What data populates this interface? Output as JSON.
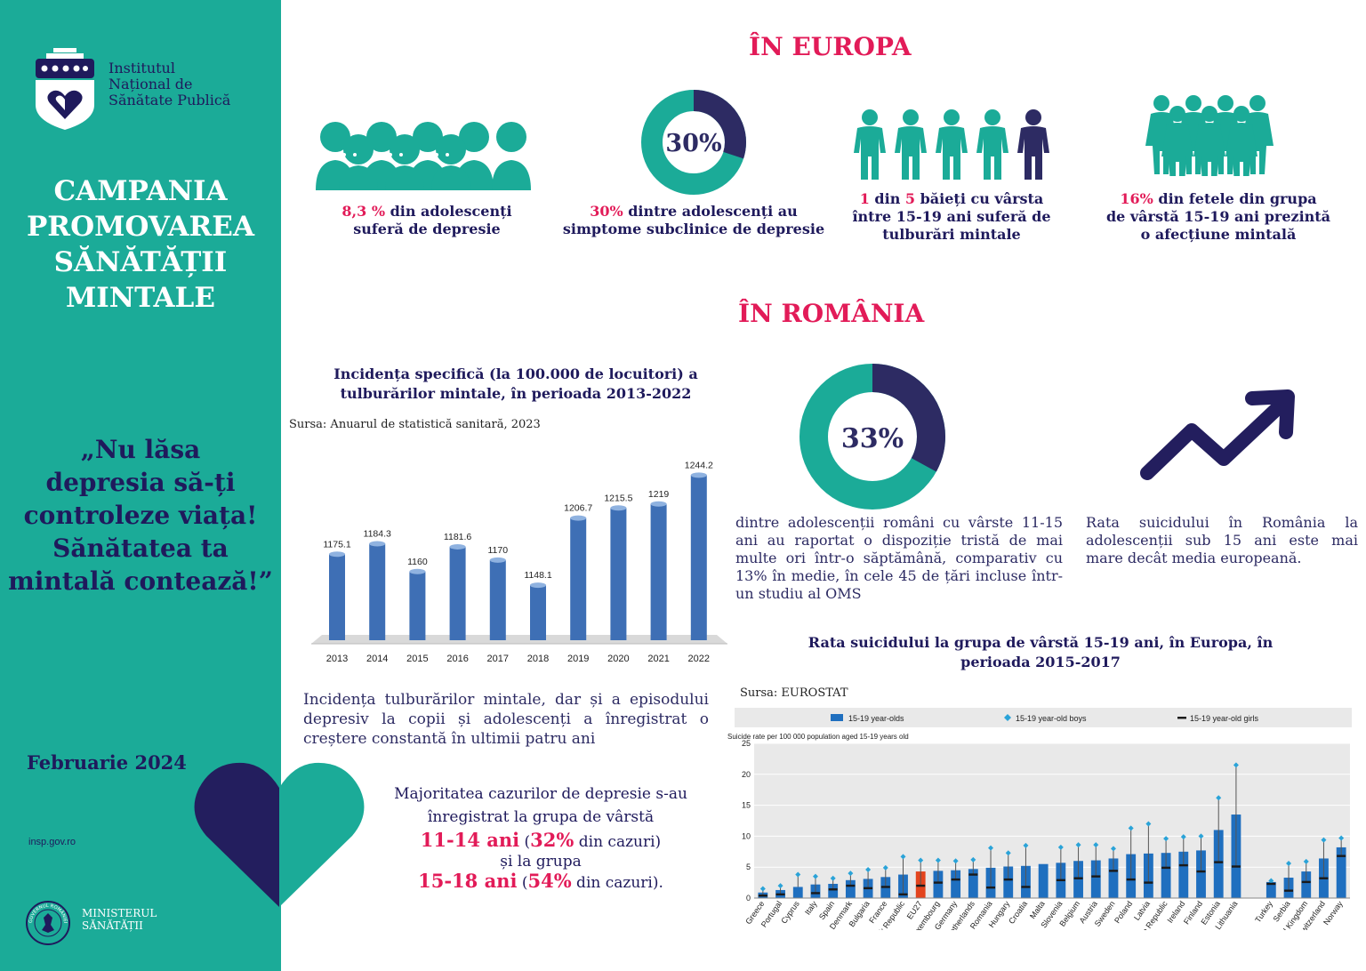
{
  "sidebar": {
    "logo_lines": [
      "Institutul",
      "Național de",
      "Sănătate Publică"
    ],
    "campaign_lines": [
      "CAMPANIA",
      "PROMOVAREA",
      "SĂNĂTĂȚII",
      "MINTALE"
    ],
    "quote_lines": [
      "„Nu lăsa",
      "depresia să-ți",
      "controleze viața!",
      "Sănătatea ta",
      "mintală contează!”"
    ],
    "date": "Februarie 2024",
    "website": "insp.gov.ro",
    "ministry_lines": [
      "MINISTERUL",
      "SĂNĂTĂȚII"
    ],
    "seal_text": "GUVERNUL ROMÂNIEI"
  },
  "europe": {
    "title": "ÎN EUROPA",
    "stat1": {
      "value": "8,3 %",
      "text_a": " din adolescenți",
      "text_b": "suferă de depresie"
    },
    "stat2": {
      "donut_label": "30%",
      "value": "30%",
      "text_a": " dintre adolescenți au",
      "text_b": "simptome subclinice de depresie"
    },
    "stat3": {
      "n1": "1",
      "t1": " din ",
      "n2": "5",
      "t2": " băieți cu vârsta",
      "text_b": "între 15-19 ani suferă de",
      "text_c": "tulburări mintale"
    },
    "stat4": {
      "value": "16%",
      "text_a": " din fetele din grupa",
      "text_b": "de vârstă 15-19 ani prezintă",
      "text_c": "o afecțiune mintală"
    }
  },
  "romania": {
    "title": "ÎN ROMÂNIA",
    "donut_label": "33%",
    "donut_text": "dintre adolescenții români cu vârste 11-15 ani au raportat o dispoziție tristă de mai multe ori într-o săptămână, comparativ cu 13% în medie, în cele 45 de țări incluse într-un studiu al OMS",
    "suicide_text": "Rata suicidului în România la adolescenții sub 15 ani este mai mare decât media europeană.",
    "incidence_text": "Incidența tulburărilor mintale, dar și a episodului depresiv la copii și adolescenți a înregistrat o creștere constantă în ultimii patru ani",
    "majority": {
      "line1": "Majoritatea cazurilor de depresie s-au",
      "line2": "înregistrat la grupa de vârstă",
      "g1_age": "11-14 ani",
      "g1_open": " (",
      "g1_pct": "32%",
      "g1_tail": " din cazuri)",
      "mid": "și la grupa",
      "g2_age": "15-18 ani",
      "g2_open": " (",
      "g2_pct": "54%",
      "g2_tail": " din cazuri)."
    }
  },
  "chart_data": [
    {
      "type": "bar",
      "title": "Incidența specifică (la 100.000 de locuitori) a tulburărilor mintale, în perioada 2013-2022",
      "source": "Sursa: Anuarul de statistică sanitară, 2023",
      "categories": [
        "2013",
        "2014",
        "2015",
        "2016",
        "2017",
        "2018",
        "2019",
        "2020",
        "2021",
        "2022"
      ],
      "values": [
        1175.1,
        1184.3,
        1160,
        1181.6,
        1170,
        1148.1,
        1206.7,
        1215.5,
        1219,
        1244.2
      ],
      "value_labels": [
        "1175.1",
        "1184.3",
        "1160",
        "1181.6",
        "1170",
        "1148.1",
        "1206.7",
        "1215.5",
        "1219",
        "1244.2"
      ],
      "color": "#3e6fb5"
    },
    {
      "type": "bar",
      "title": "Rata suicidului la grupa de vârstă 15-19 ani, în Europa, în perioada 2015-2017",
      "source": "Sursa:  EUROSTAT",
      "ylabel": "Suicide rate per 100 000 population aged 15-19 years old",
      "ylim": [
        0,
        25
      ],
      "yticks": [
        0,
        5,
        10,
        15,
        20,
        25
      ],
      "legend": [
        "15-19 year-olds",
        "15-19 year-old boys",
        "15-19 year-old girls"
      ],
      "categories": [
        "Greece",
        "Portugal",
        "Cyprus",
        "Italy",
        "Spain",
        "Denmark",
        "Bulgaria",
        "France",
        "Slovak Republic",
        "EU27",
        "Luxembourg",
        "Germany",
        "Netherlands",
        "Romania",
        "Hungary",
        "Croatia",
        "Malta",
        "Slovenia",
        "Belgium",
        "Austria",
        "Sweden",
        "Poland",
        "Latvia",
        "Czech Republic",
        "Ireland",
        "Finland",
        "Estonia",
        "Lithuania",
        "",
        "Turkey",
        "Serbia",
        "United Kingdom",
        "Switzerland",
        "Norway"
      ],
      "series": [
        {
          "name": "15-19 year-olds",
          "values": [
            0.9,
            1.3,
            1.8,
            2.2,
            2.3,
            2.9,
            3.1,
            3.4,
            3.8,
            4.3,
            4.4,
            4.5,
            4.7,
            4.9,
            5.1,
            5.2,
            5.5,
            5.7,
            6,
            6.1,
            6.4,
            7.1,
            7.2,
            7.3,
            7.5,
            7.7,
            11,
            13.5,
            null,
            2.6,
            3.3,
            4.3,
            6.4,
            8.2
          ]
        },
        {
          "name": "15-19 year-old boys",
          "values": [
            1.5,
            2.0,
            3.8,
            3.5,
            3.2,
            4.0,
            4.6,
            4.9,
            6.7,
            6.1,
            6.1,
            6.0,
            6.2,
            8.1,
            7.3,
            8.5,
            null,
            8.2,
            8.6,
            8.6,
            8.0,
            11.3,
            12.0,
            9.6,
            9.9,
            10.0,
            16.2,
            21.5,
            null,
            2.8,
            5.6,
            5.9,
            9.4,
            9.7
          ]
        },
        {
          "name": "15-19 year-old girls",
          "values": [
            0.4,
            0.6,
            null,
            0.8,
            1.4,
            2.0,
            1.6,
            1.8,
            0.6,
            2.0,
            2.5,
            3.0,
            3.8,
            1.7,
            3.0,
            1.8,
            null,
            2.9,
            3.2,
            3.5,
            4.4,
            3.0,
            2.5,
            4.9,
            5.3,
            4.3,
            5.8,
            5.1,
            null,
            2.3,
            1.2,
            2.6,
            3.2,
            6.8
          ]
        }
      ],
      "highlight": "EU27",
      "colors": {
        "bar": "#1f6fbf",
        "highlight": "#e3441d",
        "boys": "#2aa3d8",
        "girls": "#1a1a1a"
      }
    }
  ]
}
